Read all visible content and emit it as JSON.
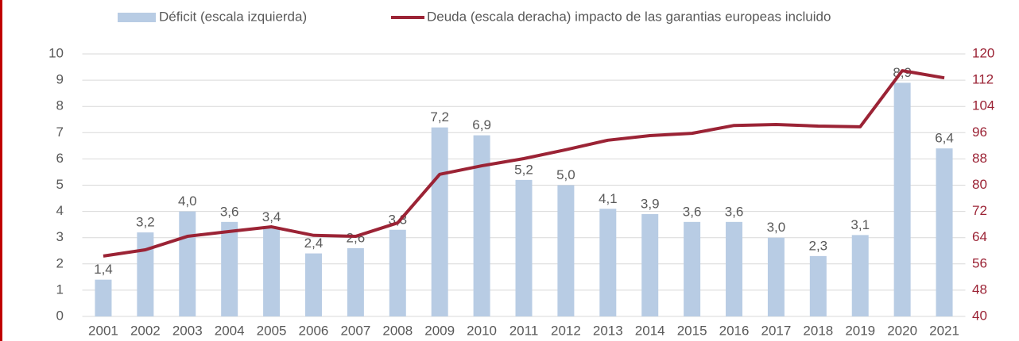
{
  "chart_data": {
    "type": "bar_line",
    "categories": [
      "2001",
      "2002",
      "2003",
      "2004",
      "2005",
      "2006",
      "2007",
      "2008",
      "2009",
      "2010",
      "2011",
      "2012",
      "2013",
      "2014",
      "2015",
      "2016",
      "2017",
      "2018",
      "2019",
      "2020",
      "2021"
    ],
    "series": [
      {
        "name": "Déficit (escala izquierda)",
        "color": "#b8cce4",
        "type": "bar",
        "values": [
          1.4,
          3.2,
          4.0,
          3.6,
          3.4,
          2.4,
          2.6,
          3.3,
          7.2,
          6.9,
          5.2,
          5.0,
          4.1,
          3.9,
          3.6,
          3.6,
          3.0,
          2.3,
          3.1,
          8.9,
          6.4
        ],
        "value_labels": [
          "1,4",
          "3,2",
          "4,0",
          "3,6",
          "3,4",
          "2,4",
          "2,6",
          "3,3",
          "7,2",
          "6,9",
          "5,2",
          "5,0",
          "4,1",
          "3,9",
          "3,6",
          "3,6",
          "3,0",
          "2,3",
          "3,1",
          "8,9",
          "6,4"
        ]
      },
      {
        "name": "Deuda (escala deracha) impacto de las garantias europeas incluido",
        "color": "#9b2335",
        "type": "line",
        "axis": "y2",
        "values": [
          58.4,
          60.3,
          64.4,
          65.9,
          67.3,
          64.7,
          64.4,
          68.5,
          83.3,
          85.9,
          88.1,
          90.8,
          93.7,
          95.1,
          95.8,
          98.2,
          98.5,
          98.0,
          97.8,
          114.9,
          112.7
        ]
      }
    ],
    "ylim": [
      0,
      10
    ],
    "yticks": [
      0,
      1,
      2,
      3,
      4,
      5,
      6,
      7,
      8,
      9,
      10
    ],
    "y2lim": [
      40,
      120
    ],
    "y2ticks": [
      40,
      48,
      56,
      64,
      72,
      80,
      88,
      96,
      104,
      112,
      120
    ],
    "grid": true,
    "legend": "top"
  }
}
